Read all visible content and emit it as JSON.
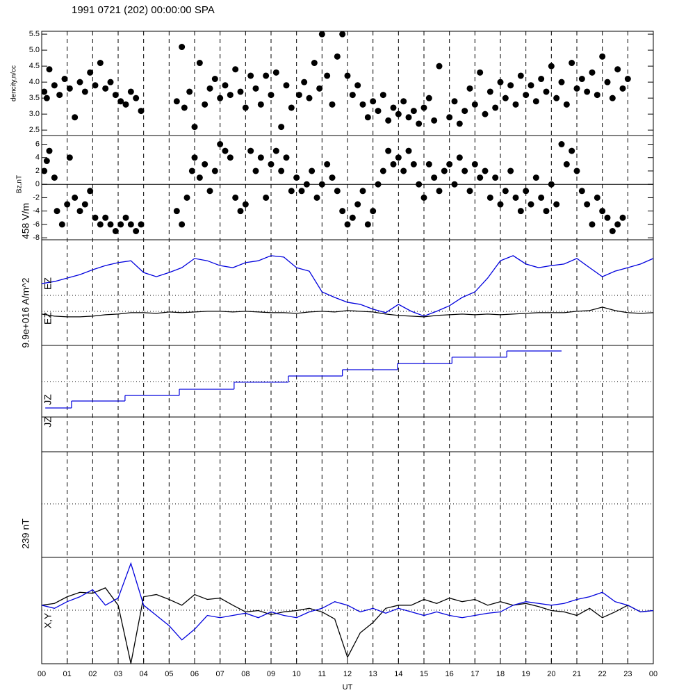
{
  "title": "1991 0721 (202) 00:00:00 SPA",
  "xaxis": {
    "label": "UT",
    "xlim": [
      0,
      24
    ],
    "xticks": [
      {
        "value": 0,
        "label": "00"
      },
      {
        "value": 1,
        "label": "01"
      },
      {
        "value": 2,
        "label": "02"
      },
      {
        "value": 3,
        "label": "03"
      },
      {
        "value": 4,
        "label": "04"
      },
      {
        "value": 5,
        "label": "05"
      },
      {
        "value": 6,
        "label": "06"
      },
      {
        "value": 7,
        "label": "07"
      },
      {
        "value": 8,
        "label": "08"
      },
      {
        "value": 9,
        "label": "09"
      },
      {
        "value": 10,
        "label": "10"
      },
      {
        "value": 11,
        "label": "11"
      },
      {
        "value": 12,
        "label": "12"
      },
      {
        "value": 13,
        "label": "13"
      },
      {
        "value": 14,
        "label": "14"
      },
      {
        "value": 15,
        "label": "15"
      },
      {
        "value": 16,
        "label": "16"
      },
      {
        "value": 17,
        "label": "17"
      },
      {
        "value": 18,
        "label": "18"
      },
      {
        "value": 19,
        "label": "19"
      },
      {
        "value": 20,
        "label": "20"
      },
      {
        "value": 21,
        "label": "21"
      },
      {
        "value": 22,
        "label": "22"
      },
      {
        "value": 23,
        "label": "23"
      },
      {
        "value": 24,
        "label": "00"
      }
    ]
  },
  "chart_data": [
    {
      "type": "scatter",
      "ylabel": "dencity,n/cc",
      "color": "#000000",
      "ylim": [
        2.33,
        5.59
      ],
      "yticks": [
        2.5,
        {
          "value": 3,
          "label": "3.0"
        },
        3.5,
        {
          "value": 4,
          "label": "4.0"
        },
        4.5,
        {
          "value": 5,
          "label": "5.0"
        },
        5.5
      ],
      "x": [
        0.1,
        0.2,
        0.3,
        0.5,
        0.7,
        0.9,
        1.1,
        1.3,
        1.5,
        1.7,
        1.9,
        2.1,
        2.3,
        2.5,
        2.7,
        2.9,
        3.1,
        3.3,
        3.5,
        3.7,
        3.9,
        5.3,
        5.5,
        5.6,
        5.8,
        6.0,
        6.2,
        6.4,
        6.6,
        6.8,
        7.0,
        7.2,
        7.4,
        7.6,
        7.8,
        8.0,
        8.2,
        8.4,
        8.6,
        8.8,
        9.0,
        9.2,
        9.4,
        9.6,
        9.8,
        10.1,
        10.3,
        10.5,
        10.7,
        10.9,
        11.0,
        11.2,
        11.4,
        11.6,
        11.8,
        12.0,
        12.2,
        12.4,
        12.6,
        12.8,
        13.0,
        13.2,
        13.4,
        13.6,
        13.8,
        14.0,
        14.2,
        14.4,
        14.6,
        14.8,
        15.0,
        15.2,
        15.4,
        15.6,
        16.0,
        16.2,
        16.4,
        16.6,
        16.8,
        17.0,
        17.2,
        17.4,
        17.6,
        17.8,
        18.0,
        18.2,
        18.4,
        18.6,
        18.8,
        19.0,
        19.2,
        19.4,
        19.6,
        19.8,
        20.0,
        20.2,
        20.4,
        20.6,
        20.8,
        21.0,
        21.2,
        21.4,
        21.6,
        21.8,
        22.0,
        22.2,
        22.4,
        22.6,
        22.8,
        23.0
      ],
      "values": [
        3.7,
        3.5,
        4.4,
        3.9,
        3.6,
        4.1,
        3.8,
        2.9,
        4.0,
        3.7,
        4.3,
        3.9,
        4.6,
        3.8,
        4.0,
        3.6,
        3.4,
        3.3,
        3.7,
        3.5,
        3.1,
        3.4,
        5.1,
        3.2,
        3.7,
        2.6,
        4.6,
        3.3,
        3.8,
        4.1,
        3.5,
        3.9,
        3.6,
        4.4,
        3.7,
        3.2,
        4.2,
        3.8,
        3.3,
        4.2,
        3.6,
        4.3,
        2.6,
        3.9,
        3.2,
        3.6,
        4.0,
        3.5,
        4.6,
        3.8,
        5.5,
        4.2,
        3.3,
        4.8,
        5.5,
        4.2,
        3.6,
        3.9,
        3.3,
        2.9,
        3.4,
        3.1,
        3.6,
        2.8,
        3.2,
        3.0,
        3.4,
        2.9,
        3.1,
        2.7,
        3.2,
        3.5,
        2.8,
        4.5,
        2.9,
        3.4,
        2.7,
        3.1,
        3.8,
        3.3,
        4.3,
        3.0,
        3.7,
        3.2,
        4.0,
        3.5,
        3.9,
        3.3,
        4.2,
        3.6,
        3.9,
        3.4,
        4.1,
        3.7,
        4.5,
        3.5,
        4.0,
        3.3,
        4.6,
        3.8,
        4.1,
        3.7,
        4.3,
        3.6,
        4.8,
        4.0,
        3.5,
        4.4,
        3.8,
        4.1
      ]
    },
    {
      "type": "scatter",
      "ylabel": "Bz,nT",
      "color": "#000000",
      "ylim": [
        -8.3,
        7.3
      ],
      "yticks": [
        -8,
        -6,
        -4,
        -2,
        0,
        2,
        4,
        6
      ],
      "x": [
        0.1,
        0.2,
        0.3,
        0.5,
        0.6,
        0.8,
        1.0,
        1.1,
        1.3,
        1.5,
        1.7,
        1.9,
        2.1,
        2.3,
        2.5,
        2.7,
        2.9,
        3.1,
        3.3,
        3.5,
        3.7,
        3.9,
        5.3,
        5.5,
        5.7,
        5.9,
        6.0,
        6.2,
        6.4,
        6.6,
        6.8,
        7.0,
        7.2,
        7.4,
        7.6,
        7.8,
        8.0,
        8.2,
        8.4,
        8.6,
        8.8,
        9.0,
        9.2,
        9.4,
        9.6,
        9.8,
        10.0,
        10.2,
        10.4,
        10.6,
        10.8,
        11.0,
        11.2,
        11.4,
        11.6,
        11.8,
        12.0,
        12.2,
        12.4,
        12.6,
        12.8,
        13.0,
        13.2,
        13.4,
        13.6,
        13.8,
        14.0,
        14.2,
        14.4,
        14.6,
        14.8,
        15.0,
        15.2,
        15.4,
        15.6,
        15.8,
        16.0,
        16.2,
        16.4,
        16.6,
        16.8,
        17.0,
        17.2,
        17.4,
        17.6,
        17.8,
        18.0,
        18.2,
        18.4,
        18.6,
        18.8,
        19.0,
        19.2,
        19.4,
        19.6,
        19.8,
        20.0,
        20.2,
        20.4,
        20.6,
        20.8,
        21.0,
        21.2,
        21.4,
        21.6,
        21.8,
        22.0,
        22.2,
        22.4,
        22.6,
        22.8
      ],
      "values": [
        2,
        3.5,
        5,
        1,
        -4,
        -6,
        -3,
        4,
        -2,
        -4,
        -3,
        -1,
        -5,
        -6,
        -5,
        -6,
        -7,
        -6,
        -5,
        -6,
        -7,
        -6,
        -4,
        -6,
        -2,
        2,
        4,
        1,
        3,
        -1,
        2,
        6,
        5,
        4,
        -2,
        -4,
        -3,
        5,
        2,
        4,
        -2,
        3,
        5,
        2,
        4,
        -1,
        1,
        -1,
        0,
        2,
        -2,
        0,
        3,
        1,
        -1,
        -4,
        -6,
        -5,
        -3,
        -1,
        -6,
        -4,
        0,
        2,
        5,
        3,
        4,
        2,
        5,
        3,
        0,
        -2,
        3,
        1,
        -1,
        2,
        3,
        0,
        4,
        2,
        -1,
        3,
        1,
        2,
        -2,
        1,
        -3,
        -1,
        2,
        -2,
        -4,
        -1,
        -3,
        1,
        -2,
        -4,
        0,
        -3,
        6,
        3,
        5,
        2,
        -1,
        -3,
        -6,
        -2,
        -4,
        -5,
        -7,
        -6,
        -5
      ]
    },
    {
      "type": "line",
      "ylabel": "458 V/m",
      "ylim": [
        0,
        458
      ],
      "x": [
        0,
        0.5,
        1,
        1.5,
        2,
        2.5,
        3,
        3.5,
        4,
        4.5,
        5,
        5.5,
        6,
        6.5,
        7,
        7.5,
        8,
        8.5,
        9,
        9.5,
        10,
        10.5,
        11,
        11.5,
        12,
        12.5,
        13,
        13.5,
        14,
        14.5,
        15,
        15.5,
        16,
        16.5,
        17,
        17.5,
        18,
        18.5,
        19,
        19.5,
        20,
        20.5,
        21,
        21.5,
        22,
        22.5,
        23,
        23.5,
        24
      ],
      "series": [
        {
          "name": "EZ",
          "color": "#0000dd",
          "values": [
            268,
            277,
            292,
            307,
            328,
            346,
            359,
            367,
            316,
            298,
            316,
            337,
            377,
            367,
            346,
            337,
            359,
            367,
            389,
            383,
            337,
            322,
            232,
            208,
            187,
            178,
            157,
            142,
            178,
            148,
            127,
            148,
            172,
            208,
            232,
            292,
            367,
            389,
            353,
            337,
            346,
            353,
            377,
            337,
            298,
            322,
            337,
            353,
            377
          ]
        },
        {
          "name": "EZ",
          "color": "#000000",
          "values": [
            136,
            127,
            124,
            124,
            127,
            133,
            136,
            142,
            142,
            139,
            145,
            142,
            145,
            148,
            148,
            145,
            148,
            145,
            142,
            142,
            139,
            145,
            148,
            145,
            151,
            148,
            145,
            136,
            130,
            127,
            124,
            130,
            133,
            136,
            133,
            136,
            133,
            136,
            139,
            142,
            142,
            142,
            148,
            151,
            166,
            151,
            142,
            139,
            142
          ]
        }
      ]
    },
    {
      "type": "step",
      "ylabel": "9.9e+016 A/m^2",
      "ylim": [
        0,
        9.9e+16
      ],
      "series": [
        {
          "name": "JZ",
          "color": "#0000dd",
          "bins": [
            0.14,
            1.17,
            3.27,
            5.4,
            7.55,
            9.68,
            11.8,
            13.96,
            16.1,
            18.25,
            20.4
          ],
          "values": [
            1.25e+16,
            2.21e+16,
            2.98e+16,
            3.84e+16,
            4.81e+16,
            5.67e+16,
            6.54e+16,
            7.4e+16,
            8.27e+16,
            9.13e+16
          ]
        }
      ]
    },
    {
      "type": "empty",
      "ylabel": "JZ"
    },
    {
      "type": "line",
      "ylabel": "239 nT",
      "series_label": "X,Y",
      "ylim": [
        -119.5,
        119.5
      ],
      "x": [
        0,
        0.5,
        1,
        1.5,
        2,
        2.5,
        3,
        3.5,
        4,
        4.5,
        5,
        5.5,
        6,
        6.5,
        7,
        7.5,
        8,
        8.5,
        9,
        9.5,
        10,
        10.5,
        11,
        11.5,
        12,
        12.5,
        13,
        13.5,
        14,
        14.5,
        15,
        15.5,
        16,
        16.5,
        17,
        17.5,
        18,
        18.5,
        19,
        19.5,
        20,
        20.5,
        21,
        21.5,
        22,
        22.5,
        23,
        23.5,
        24
      ],
      "series": [
        {
          "color": "#000000",
          "values": [
            12,
            16,
            31,
            41,
            39,
            51,
            12,
            -119,
            31,
            36,
            25,
            12,
            36,
            25,
            28,
            12,
            -3,
            0,
            -9,
            -3,
            0,
            5,
            -3,
            -19,
            -105,
            -50,
            -27,
            5,
            12,
            12,
            25,
            16,
            28,
            20,
            25,
            12,
            20,
            12,
            16,
            9,
            0,
            -3,
            -11,
            5,
            -16,
            -3,
            12,
            -3,
            0
          ]
        },
        {
          "color": "#0000dd",
          "values": [
            12,
            5,
            20,
            31,
            47,
            12,
            28,
            106,
            12,
            -11,
            -34,
            -66,
            -42,
            -11,
            -16,
            -11,
            -6,
            -16,
            -3,
            -11,
            -16,
            -3,
            5,
            20,
            12,
            -3,
            5,
            -6,
            5,
            -3,
            -11,
            -3,
            -11,
            -16,
            -11,
            -6,
            -3,
            12,
            20,
            16,
            12,
            16,
            25,
            31,
            41,
            20,
            12,
            -3,
            0
          ]
        }
      ]
    }
  ]
}
